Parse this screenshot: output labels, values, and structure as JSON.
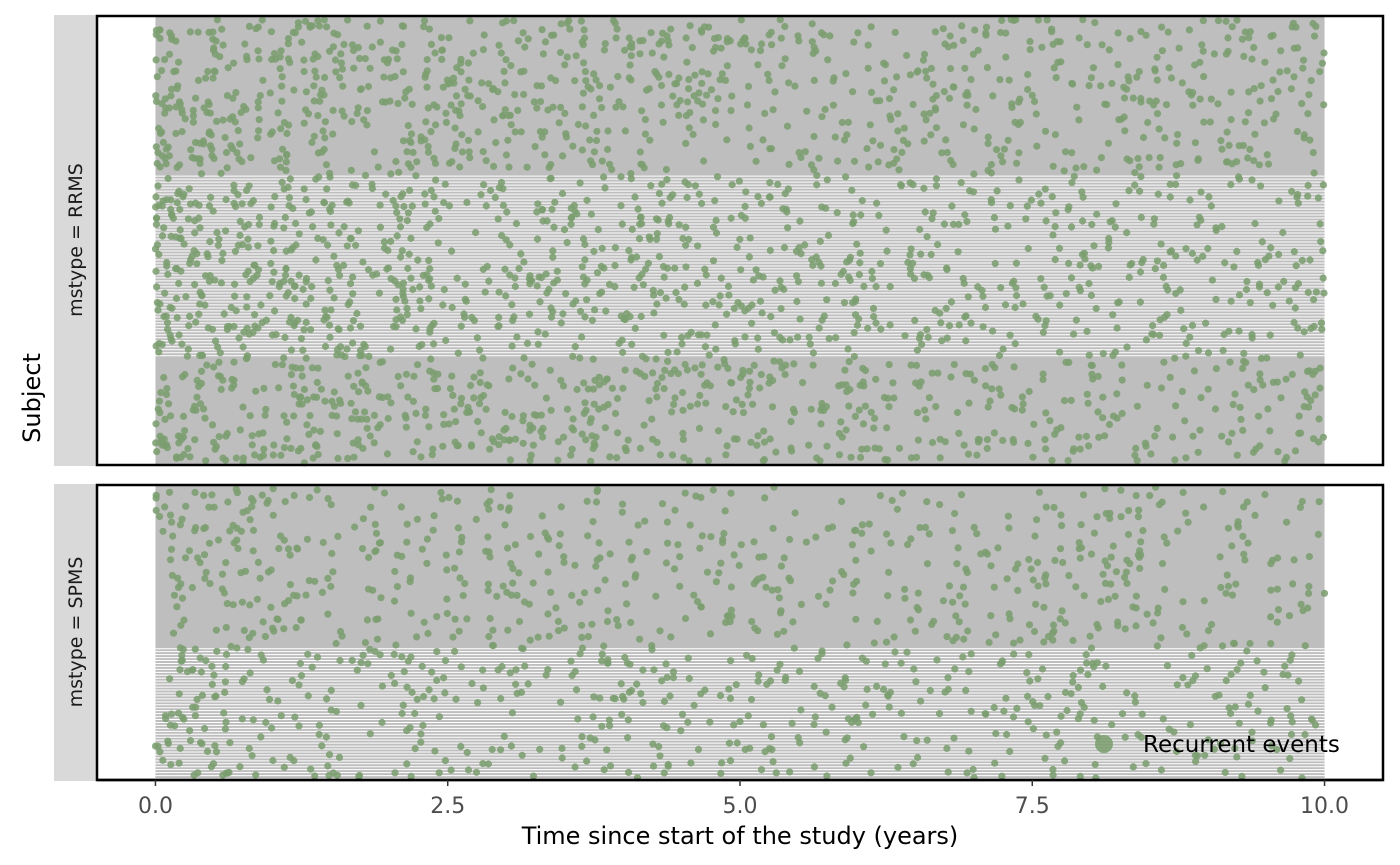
{
  "chart_data": {
    "type": "scatter",
    "title": "",
    "xlabel": "Time since start of the study (years)",
    "ylabel": "Subject",
    "xlim": [
      -0.5,
      10.5
    ],
    "x_ticks": [
      0.0,
      2.5,
      5.0,
      7.5,
      10.0
    ],
    "x_tick_labels": [
      "0.0",
      "2.5",
      "5.0",
      "7.5",
      "10.0"
    ],
    "grid": false,
    "legend": {
      "position": "bottom-right",
      "label": "Recurrent events"
    },
    "colors": {
      "point": "#7a9e6e",
      "panel_band": "#bebebe",
      "strip": "#d9d9d9",
      "follow_up_line": "#ffffff",
      "border": "#000000"
    },
    "panels": [
      {
        "strip_label": "mstype = RRMS",
        "subjects": 150,
        "follow_up_years": 10.0,
        "subject_lines": {
          "shown_from": 37,
          "shown_to": 97
        },
        "events_per_subject_approx": 18,
        "series": [
          {
            "name": "Recurrent events",
            "points": "one point per event: (time in years, subject)"
          }
        ]
      },
      {
        "strip_label": "mstype = SPMS",
        "subjects": 100,
        "follow_up_years": 10.0,
        "subject_lines": {
          "shown_from": 1,
          "shown_to": 45
        },
        "events_per_subject_approx": 12,
        "series": [
          {
            "name": "Recurrent events",
            "points": "one point per event: (time in years, subject)"
          }
        ]
      }
    ]
  }
}
